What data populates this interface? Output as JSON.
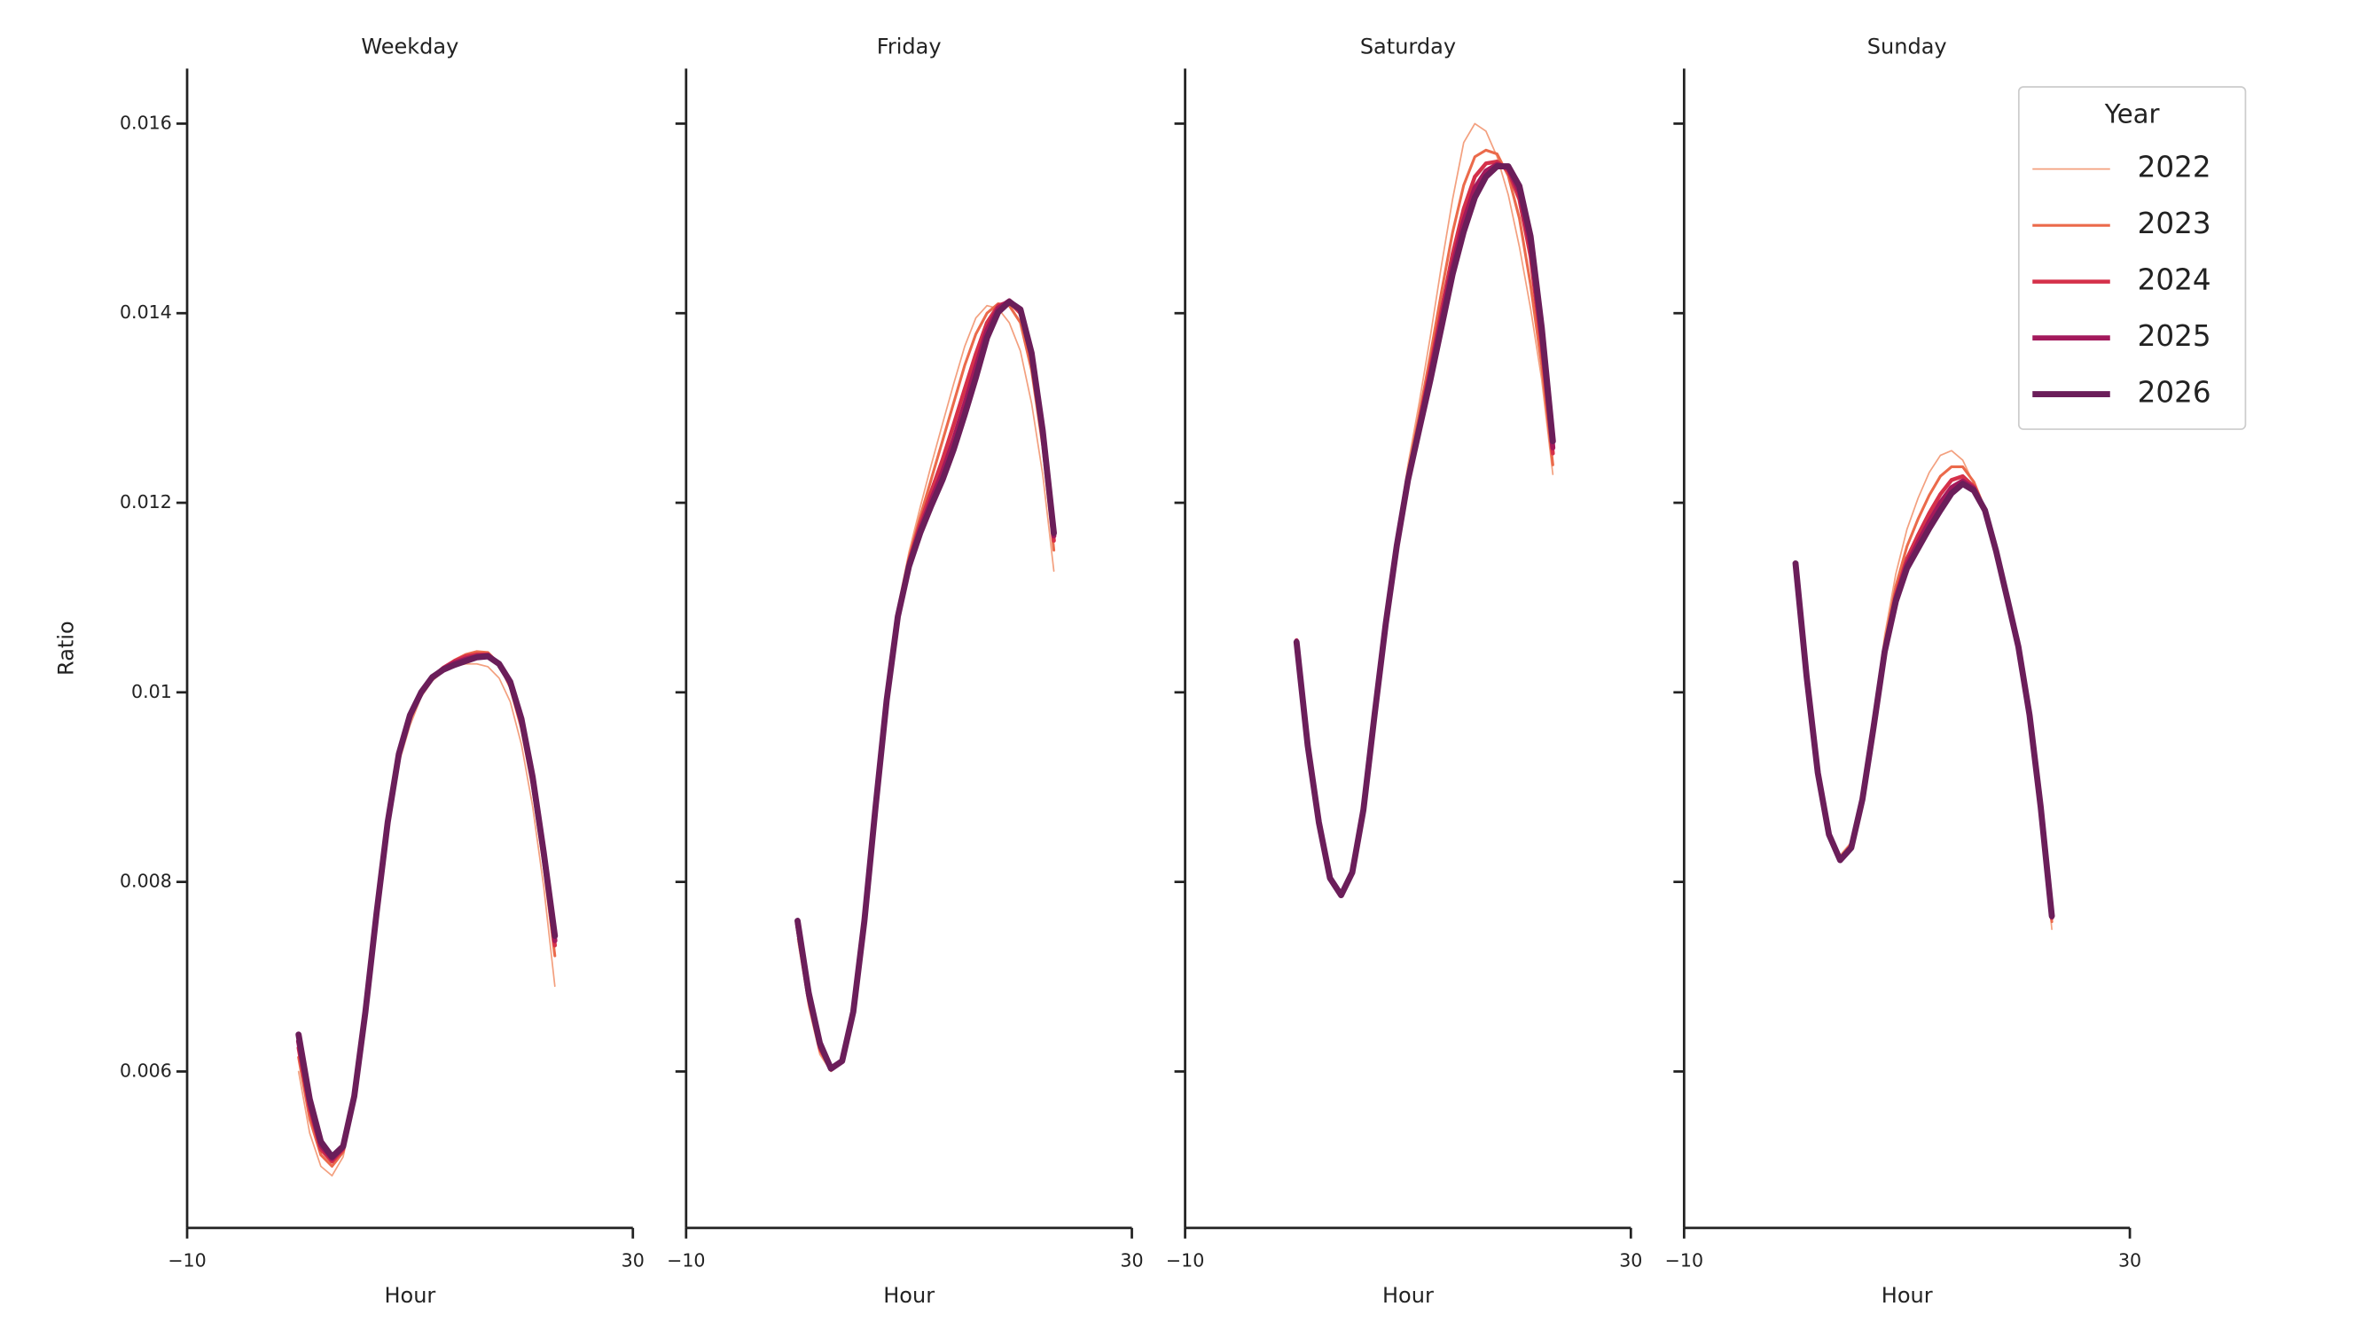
{
  "chart_data": [
    {
      "type": "line",
      "title": "Weekday",
      "xlabel": "Hour",
      "ylabel": "Ratio",
      "x": [
        0,
        1,
        2,
        3,
        4,
        5,
        6,
        7,
        8,
        9,
        10,
        11,
        12,
        13,
        14,
        15,
        16,
        17,
        18,
        19,
        20,
        21,
        22,
        23
      ],
      "xlim": [
        -10,
        30
      ],
      "xticks": [
        {
          "value": -10,
          "label": "−10"
        },
        30
      ],
      "ylim": [
        0.00435,
        0.01658
      ],
      "yticks": [
        0.006,
        0.008,
        0.01,
        0.012,
        0.014,
        0.016
      ],
      "series": [
        {
          "color": "#f3a07f",
          "values": [
            0.006,
            0.00535,
            0.005,
            0.0049,
            0.0051,
            0.00565,
            0.00655,
            0.0076,
            0.00855,
            0.00925,
            0.00965,
            0.00995,
            0.01012,
            0.01022,
            0.01028,
            0.0103,
            0.0103,
            0.01027,
            0.01015,
            0.0099,
            0.00945,
            0.0088,
            0.00795,
            0.0069
          ]
        },
        {
          "color": "#eb6a4b",
          "values": [
            0.00615,
            0.0055,
            0.00512,
            0.005,
            0.00515,
            0.0057,
            0.0066,
            0.00765,
            0.0086,
            0.0093,
            0.0097,
            0.00998,
            0.01015,
            0.01026,
            0.01034,
            0.0104,
            0.01043,
            0.01042,
            0.0103,
            0.01005,
            0.00962,
            0.009,
            0.00818,
            0.00722
          ]
        },
        {
          "color": "#d5304a",
          "values": [
            0.00625,
            0.0056,
            0.00518,
            0.00505,
            0.00518,
            0.00572,
            0.00662,
            0.00766,
            0.00862,
            0.00932,
            0.00973,
            0.01,
            0.01016,
            0.01026,
            0.01033,
            0.01038,
            0.0104,
            0.0104,
            0.0103,
            0.01008,
            0.00967,
            0.00905,
            0.00825,
            0.00733
          ]
        },
        {
          "color": "#a3195c",
          "values": [
            0.00632,
            0.00566,
            0.00522,
            0.00508,
            0.0052,
            0.00574,
            0.00663,
            0.00767,
            0.00863,
            0.00934,
            0.00975,
            0.01,
            0.01016,
            0.01025,
            0.01031,
            0.01035,
            0.01038,
            0.01039,
            0.0103,
            0.0101,
            0.0097,
            0.00909,
            0.00829,
            0.00738
          ]
        },
        {
          "color": "#6b1e5a",
          "values": [
            0.00639,
            0.00571,
            0.00526,
            0.0051,
            0.00521,
            0.00574,
            0.00663,
            0.00767,
            0.00863,
            0.00935,
            0.00976,
            0.01,
            0.01016,
            0.01024,
            0.01029,
            0.01033,
            0.01037,
            0.01038,
            0.0103,
            0.01011,
            0.00972,
            0.00911,
            0.00831,
            0.00743
          ]
        }
      ]
    },
    {
      "type": "line",
      "title": "Friday",
      "xlabel": "Hour",
      "sharey": true,
      "x": [
        0,
        1,
        2,
        3,
        4,
        5,
        6,
        7,
        8,
        9,
        10,
        11,
        12,
        13,
        14,
        15,
        16,
        17,
        18,
        19,
        20,
        21,
        22,
        23
      ],
      "xlim": [
        -10,
        30
      ],
      "xticks": [
        {
          "value": -10,
          "label": "−10"
        },
        30
      ],
      "series": [
        {
          "color": "#f3a07f",
          "values": [
            0.0074,
            0.00668,
            0.00618,
            0.006,
            0.0061,
            0.00662,
            0.0076,
            0.00882,
            0.00998,
            0.0109,
            0.01148,
            0.01195,
            0.0124,
            0.01283,
            0.01325,
            0.01365,
            0.01395,
            0.01408,
            0.01405,
            0.0139,
            0.0136,
            0.01305,
            0.0123,
            0.01128
          ]
        },
        {
          "color": "#eb6a4b",
          "values": [
            0.00748,
            0.00673,
            0.00622,
            0.00601,
            0.0061,
            0.00662,
            0.0076,
            0.00881,
            0.00996,
            0.01086,
            0.01142,
            0.01185,
            0.01225,
            0.01265,
            0.01305,
            0.01345,
            0.01378,
            0.014,
            0.0141,
            0.01408,
            0.0139,
            0.0134,
            0.0126,
            0.0115
          ]
        },
        {
          "color": "#d5304a",
          "values": [
            0.00752,
            0.00677,
            0.00625,
            0.00602,
            0.0061,
            0.00662,
            0.00759,
            0.0088,
            0.00994,
            0.01083,
            0.01138,
            0.01178,
            0.01212,
            0.01245,
            0.01282,
            0.0132,
            0.01357,
            0.0139,
            0.01408,
            0.01412,
            0.014,
            0.01352,
            0.0127,
            0.0116
          ]
        },
        {
          "color": "#a3195c",
          "values": [
            0.00756,
            0.0068,
            0.00628,
            0.00603,
            0.00611,
            0.00663,
            0.00759,
            0.00879,
            0.00993,
            0.01081,
            0.01135,
            0.01172,
            0.01203,
            0.01232,
            0.01266,
            0.01304,
            0.01343,
            0.01382,
            0.01405,
            0.01413,
            0.01403,
            0.01356,
            0.01274,
            0.01165
          ]
        },
        {
          "color": "#6b1e5a",
          "values": [
            0.00759,
            0.00683,
            0.0063,
            0.00603,
            0.00611,
            0.00663,
            0.00759,
            0.00879,
            0.00992,
            0.0108,
            0.01133,
            0.01168,
            0.01197,
            0.01224,
            0.01256,
            0.01293,
            0.01332,
            0.01374,
            0.01401,
            0.01412,
            0.01404,
            0.01358,
            0.01276,
            0.01168
          ]
        }
      ]
    },
    {
      "type": "line",
      "title": "Saturday",
      "xlabel": "Hour",
      "sharey": true,
      "x": [
        0,
        1,
        2,
        3,
        4,
        5,
        6,
        7,
        8,
        9,
        10,
        11,
        12,
        13,
        14,
        15,
        16,
        17,
        18,
        19,
        20,
        21,
        22,
        23
      ],
      "xlim": [
        -10,
        30
      ],
      "xticks": [
        {
          "value": -10,
          "label": "−10"
        },
        30
      ],
      "series": [
        {
          "color": "#f3a07f",
          "values": [
            0.0105,
            0.0094,
            0.0086,
            0.00802,
            0.00786,
            0.0081,
            0.00878,
            0.0098,
            0.0108,
            0.01165,
            0.0124,
            0.01305,
            0.01375,
            0.0145,
            0.0152,
            0.0158,
            0.016,
            0.01592,
            0.01565,
            0.01525,
            0.0147,
            0.01405,
            0.0133,
            0.0123
          ]
        },
        {
          "color": "#eb6a4b",
          "values": [
            0.01055,
            0.00943,
            0.00862,
            0.00803,
            0.00786,
            0.0081,
            0.00877,
            0.00978,
            0.01076,
            0.0116,
            0.01232,
            0.01292,
            0.01355,
            0.01422,
            0.01485,
            0.01535,
            0.01565,
            0.01572,
            0.01568,
            0.01545,
            0.015,
            0.0143,
            0.01345,
            0.0124
          ]
        },
        {
          "color": "#d5304a",
          "values": [
            0.01055,
            0.00944,
            0.00863,
            0.00804,
            0.00786,
            0.0081,
            0.00876,
            0.00977,
            0.01074,
            0.01157,
            0.01228,
            0.01284,
            0.01342,
            0.01403,
            0.01462,
            0.0151,
            0.01544,
            0.01558,
            0.0156,
            0.0155,
            0.0152,
            0.0146,
            0.01365,
            0.01252
          ]
        },
        {
          "color": "#a3195c",
          "values": [
            0.01054,
            0.00944,
            0.00863,
            0.00804,
            0.00786,
            0.0081,
            0.00876,
            0.00976,
            0.01073,
            0.01156,
            0.01226,
            0.0128,
            0.01335,
            0.01393,
            0.0145,
            0.01497,
            0.01532,
            0.0155,
            0.01557,
            0.01553,
            0.01528,
            0.01472,
            0.01376,
            0.01258
          ]
        },
        {
          "color": "#6b1e5a",
          "values": [
            0.01053,
            0.00944,
            0.00863,
            0.00804,
            0.00786,
            0.0081,
            0.00876,
            0.00976,
            0.01072,
            0.01155,
            0.01224,
            0.01277,
            0.01329,
            0.01385,
            0.01441,
            0.01486,
            0.01522,
            0.01544,
            0.01555,
            0.01555,
            0.01534,
            0.01481,
            0.01385,
            0.01265
          ]
        }
      ]
    },
    {
      "type": "line",
      "title": "Sunday",
      "xlabel": "Hour",
      "sharey": true,
      "x": [
        0,
        1,
        2,
        3,
        4,
        5,
        6,
        7,
        8,
        9,
        10,
        11,
        12,
        13,
        14,
        15,
        16,
        17,
        18,
        19,
        20,
        21,
        22,
        23
      ],
      "xlim": [
        -10,
        30
      ],
      "xticks": [
        {
          "value": -10,
          "label": "−10"
        },
        30
      ],
      "legend": "upper right",
      "legend_title": "Year",
      "series": [
        {
          "name": "2022",
          "color": "#f3a07f",
          "values": [
            0.0113,
            0.01012,
            0.00915,
            0.00852,
            0.00828,
            0.00842,
            0.00893,
            0.00972,
            0.0106,
            0.01125,
            0.01172,
            0.01205,
            0.01232,
            0.0125,
            0.01255,
            0.01245,
            0.0122,
            0.0119,
            0.01148,
            0.01098,
            0.01046,
            0.00973,
            0.00873,
            0.0075
          ]
        },
        {
          "name": "2023",
          "color": "#eb6a4b",
          "values": [
            0.01133,
            0.01014,
            0.00915,
            0.00851,
            0.00826,
            0.0084,
            0.0089,
            0.00968,
            0.01052,
            0.01112,
            0.01154,
            0.01183,
            0.01208,
            0.01228,
            0.01238,
            0.01238,
            0.01222,
            0.01193,
            0.0115,
            0.01099,
            0.01047,
            0.00975,
            0.00877,
            0.00758
          ]
        },
        {
          "name": "2024",
          "color": "#d5304a",
          "values": [
            0.01135,
            0.01015,
            0.00915,
            0.0085,
            0.00824,
            0.00838,
            0.00888,
            0.00965,
            0.01047,
            0.01103,
            0.01141,
            0.01166,
            0.01189,
            0.01209,
            0.01224,
            0.01228,
            0.01217,
            0.01193,
            0.0115,
            0.01099,
            0.01048,
            0.00976,
            0.00878,
            0.00762
          ]
        },
        {
          "name": "2025",
          "color": "#a3195c",
          "values": [
            0.01136,
            0.01016,
            0.00915,
            0.0085,
            0.00823,
            0.00837,
            0.00887,
            0.00964,
            0.01045,
            0.01099,
            0.01135,
            0.01158,
            0.0118,
            0.012,
            0.01216,
            0.01223,
            0.01215,
            0.01192,
            0.01149,
            0.01099,
            0.01048,
            0.00976,
            0.00879,
            0.00763
          ]
        },
        {
          "name": "2026",
          "color": "#6b1e5a",
          "values": [
            0.01136,
            0.01016,
            0.00915,
            0.0085,
            0.00823,
            0.00836,
            0.00887,
            0.00963,
            0.01043,
            0.01096,
            0.01131,
            0.01152,
            0.01173,
            0.01192,
            0.0121,
            0.0122,
            0.01213,
            0.01192,
            0.01149,
            0.01099,
            0.01048,
            0.00976,
            0.00879,
            0.00764
          ]
        }
      ]
    }
  ]
}
